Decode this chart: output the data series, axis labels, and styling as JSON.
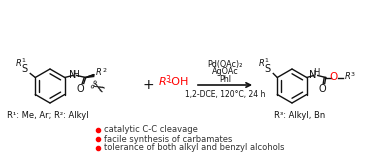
{
  "background_color": "#ffffff",
  "figsize": [
    3.78,
    1.53
  ],
  "dpi": 100,
  "bullet_color": "#ff0000",
  "bullet_text_color": "#333333",
  "red_color": "#ff0000",
  "black_color": "#111111",
  "bullet_points": [
    "catalytic C-C cleavage",
    "facile synthesis of carbamates",
    "tolerance of both alkyl and benzyl alcohols"
  ],
  "conditions_line1": "Pd(OAc)₂",
  "conditions_line2": "AgOAc",
  "conditions_line3": "PhI",
  "conditions_line4": "1,2-DCE, 120°C, 24 h",
  "r1_label_left": "R¹: Me, Ar; R²: Alkyl",
  "r3_label_right": "R³: Alkyl, Bn",
  "r3oh": "R³-OH"
}
